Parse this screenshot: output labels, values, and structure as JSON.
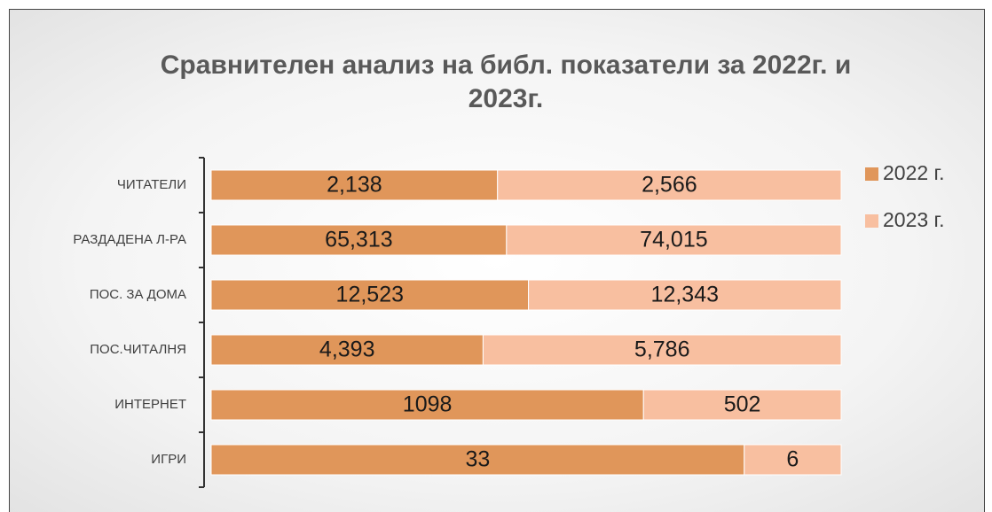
{
  "chart_data": {
    "type": "bar",
    "orientation": "horizontal",
    "stacking": "percent",
    "title": "Сравнителен анализ на библ. показатели за 2022г. и 2023г.",
    "categories": [
      "ЧИТАТЕЛИ",
      "РАЗДАДЕНА Л-РА",
      "ПОС. ЗА ДОМА",
      "ПОС.ЧИТАЛНЯ",
      "ИНТЕРНЕТ",
      "ИГРИ"
    ],
    "series": [
      {
        "name": "2022 г.",
        "color": "#e0965a",
        "values": [
          2138,
          65313,
          12523,
          4393,
          1098,
          33
        ],
        "value_labels": [
          "2,138",
          "65,313",
          "12,523",
          "4,393",
          "1098",
          "33"
        ]
      },
      {
        "name": "2023 г.",
        "color": "#f8bfa0",
        "values": [
          2566,
          74015,
          12343,
          5786,
          502,
          6
        ],
        "value_labels": [
          "2,566",
          "74,015",
          "12,343",
          "5,786",
          "502",
          "6"
        ]
      }
    ],
    "legend": "right"
  }
}
